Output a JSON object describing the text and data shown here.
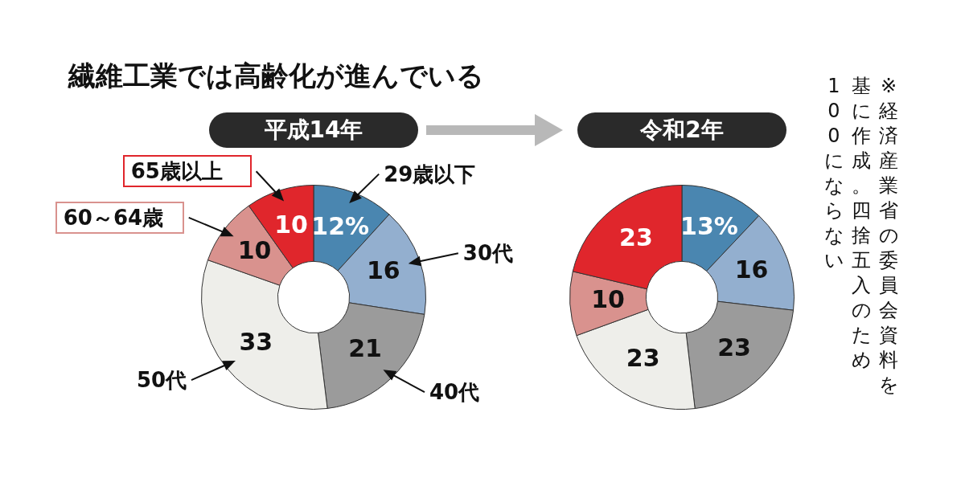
{
  "chart_data": [
    {
      "type": "donut",
      "title": "繊維工業では高齢化が進んでいる",
      "subtitle": "平成14年",
      "categories": [
        "29歳以下",
        "30代",
        "40代",
        "50代",
        "60～64歳",
        "65歳以上"
      ],
      "values": [
        12,
        16,
        21,
        33,
        10,
        10
      ],
      "value_labels": [
        "12%",
        "16",
        "21",
        "33",
        "10",
        "10"
      ],
      "colors": [
        "#4a86b0",
        "#93afcf",
        "#9b9b9b",
        "#eeeeea",
        "#d9928e",
        "#e0262c"
      ],
      "legend": false
    },
    {
      "type": "donut",
      "subtitle": "令和2年",
      "categories": [
        null,
        null,
        null,
        null,
        null,
        null
      ],
      "values": [
        13,
        16,
        23,
        23,
        10,
        23
      ],
      "value_labels": [
        "13%",
        "16",
        "23",
        "23",
        "10",
        "23"
      ],
      "colors": [
        "#4a86b0",
        "#93afcf",
        "#9b9b9b",
        "#eeeeea",
        "#d9928e",
        "#e0262c"
      ],
      "legend": false,
      "annotations": [
        "※経済産業省の委員会資料を",
        "基に作成。四捨五入のため",
        "100にならない"
      ]
    }
  ]
}
